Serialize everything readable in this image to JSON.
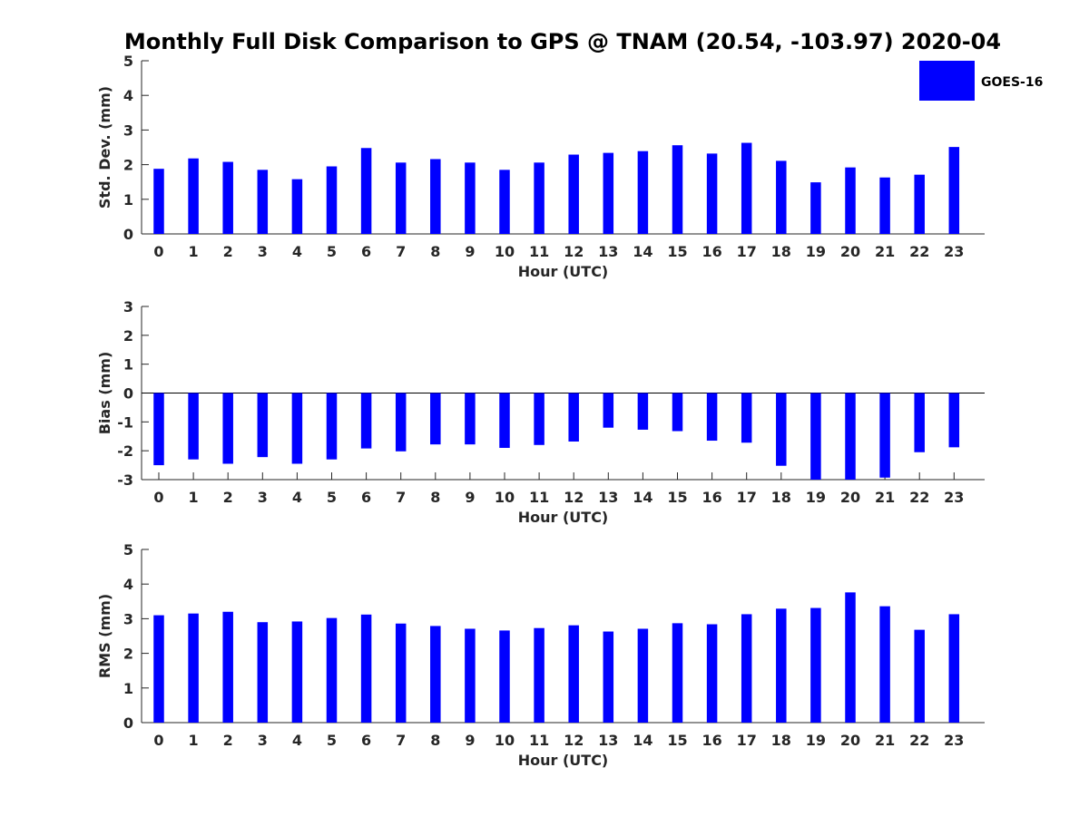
{
  "title": "Monthly Full Disk Comparison to GPS @ TNAM (20.54, -103.97) 2020-04",
  "legend": {
    "label": "GOES-16",
    "color": "#0000ff"
  },
  "chart_data": [
    {
      "type": "bar",
      "name": "std-dev",
      "ylabel": "Std. Dev. (mm)",
      "xlabel": "Hour (UTC)",
      "ylim": [
        0,
        5
      ],
      "yticks": [
        0,
        1,
        2,
        3,
        4,
        5
      ],
      "categories": [
        "0",
        "1",
        "2",
        "3",
        "4",
        "5",
        "6",
        "7",
        "8",
        "9",
        "10",
        "11",
        "12",
        "13",
        "14",
        "15",
        "16",
        "17",
        "18",
        "19",
        "20",
        "21",
        "22",
        "23"
      ],
      "series": [
        {
          "name": "GOES-16",
          "color": "#0000ff",
          "values": [
            1.88,
            2.18,
            2.08,
            1.85,
            1.58,
            1.95,
            2.48,
            2.06,
            2.16,
            2.06,
            1.85,
            2.06,
            2.29,
            2.34,
            2.39,
            2.56,
            2.32,
            2.63,
            2.11,
            1.49,
            1.92,
            1.63,
            1.71,
            2.51
          ]
        }
      ]
    },
    {
      "type": "bar",
      "name": "bias",
      "ylabel": "Bias (mm)",
      "xlabel": "Hour (UTC)",
      "ylim": [
        -3,
        3
      ],
      "yticks": [
        -3,
        -2,
        -1,
        0,
        1,
        2,
        3
      ],
      "zero_line": true,
      "categories": [
        "0",
        "1",
        "2",
        "3",
        "4",
        "5",
        "6",
        "7",
        "8",
        "9",
        "10",
        "11",
        "12",
        "13",
        "14",
        "15",
        "16",
        "17",
        "18",
        "19",
        "20",
        "21",
        "22",
        "23"
      ],
      "series": [
        {
          "name": "GOES-16",
          "color": "#0000ff",
          "values": [
            -2.5,
            -2.3,
            -2.45,
            -2.22,
            -2.45,
            -2.3,
            -1.92,
            -2.02,
            -1.78,
            -1.78,
            -1.9,
            -1.8,
            -1.68,
            -1.2,
            -1.27,
            -1.32,
            -1.65,
            -1.72,
            -2.52,
            -3.0,
            -3.0,
            -2.93,
            -2.05,
            -1.88
          ]
        }
      ]
    },
    {
      "type": "bar",
      "name": "rms",
      "ylabel": "RMS (mm)",
      "xlabel": "Hour (UTC)",
      "ylim": [
        0,
        5
      ],
      "yticks": [
        0,
        1,
        2,
        3,
        4,
        5
      ],
      "categories": [
        "0",
        "1",
        "2",
        "3",
        "4",
        "5",
        "6",
        "7",
        "8",
        "9",
        "10",
        "11",
        "12",
        "13",
        "14",
        "15",
        "16",
        "17",
        "18",
        "19",
        "20",
        "21",
        "22",
        "23"
      ],
      "series": [
        {
          "name": "GOES-16",
          "color": "#0000ff",
          "values": [
            3.1,
            3.15,
            3.2,
            2.9,
            2.92,
            3.02,
            3.12,
            2.86,
            2.79,
            2.71,
            2.66,
            2.73,
            2.81,
            2.63,
            2.71,
            2.87,
            2.84,
            3.13,
            3.29,
            3.31,
            3.76,
            3.36,
            2.68,
            3.13
          ]
        }
      ]
    }
  ]
}
